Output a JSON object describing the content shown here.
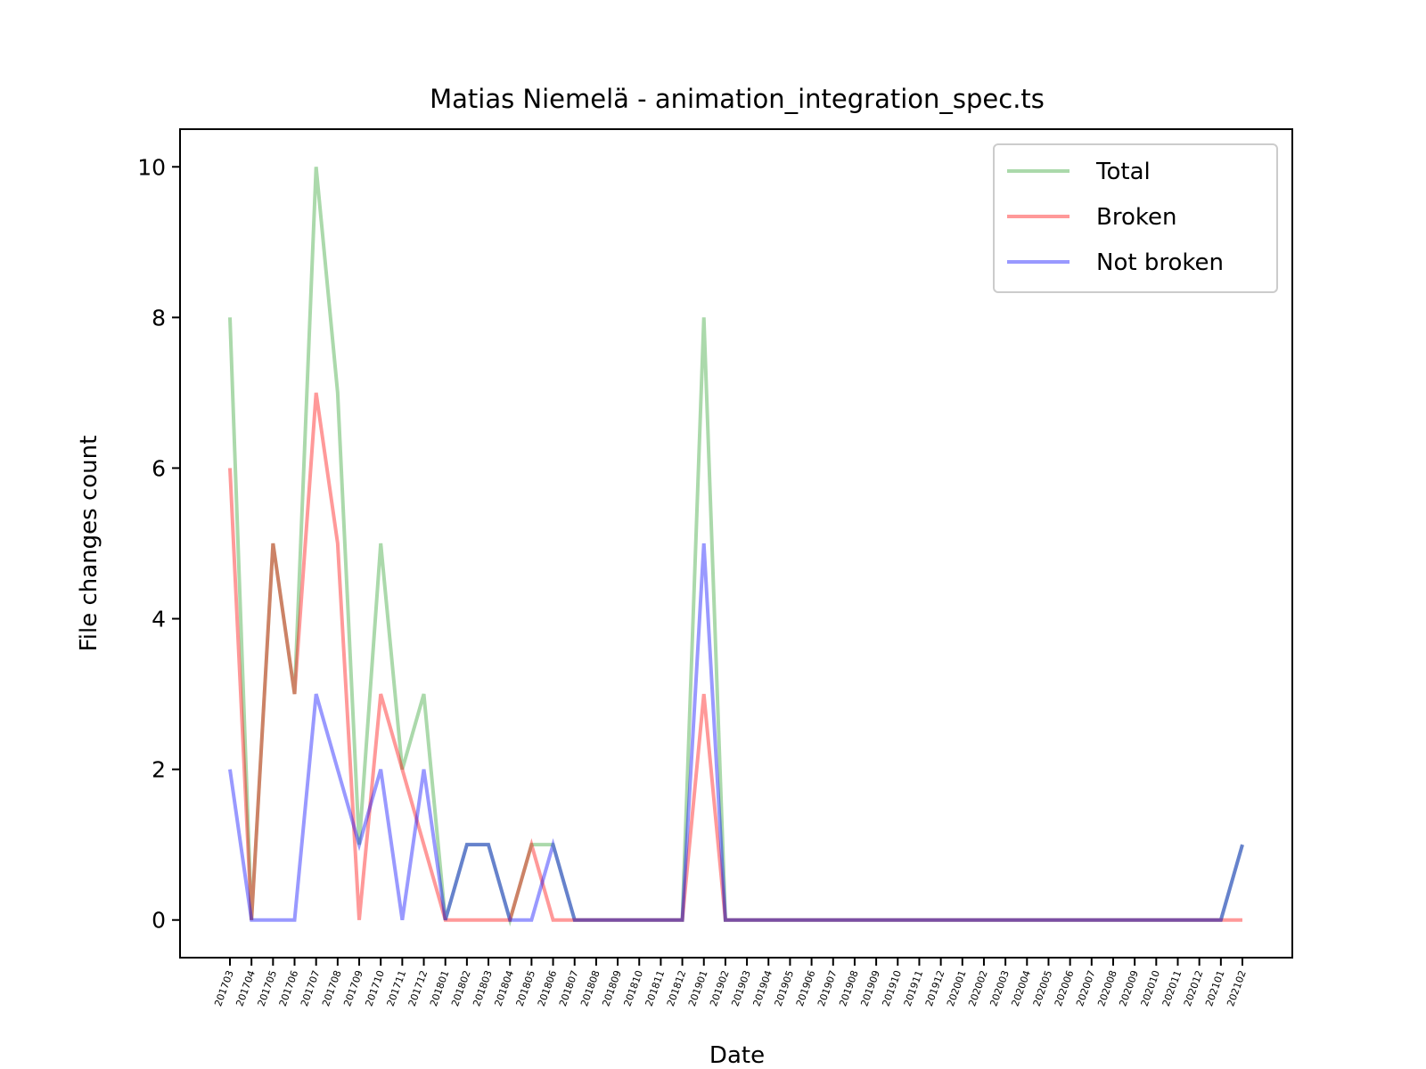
{
  "chart_data": {
    "type": "line",
    "title": "Matias Niemelä - animation_integration_spec.ts",
    "xlabel": "Date",
    "ylabel": "File changes count",
    "ylim": [
      -0.5,
      10.5
    ],
    "yticks": [
      0,
      2,
      4,
      6,
      8,
      10
    ],
    "grid": false,
    "legend_position": "upper right",
    "categories": [
      "201703",
      "201704",
      "201705",
      "201706",
      "201707",
      "201708",
      "201709",
      "201710",
      "201711",
      "201712",
      "201801",
      "201802",
      "201803",
      "201804",
      "201805",
      "201806",
      "201807",
      "201808",
      "201809",
      "201810",
      "201811",
      "201812",
      "201901",
      "201902",
      "201903",
      "201904",
      "201905",
      "201906",
      "201907",
      "201908",
      "201909",
      "201910",
      "201911",
      "201912",
      "202001",
      "202002",
      "202003",
      "202004",
      "202005",
      "202006",
      "202007",
      "202008",
      "202009",
      "202010",
      "202011",
      "202012",
      "202101",
      "202102"
    ],
    "series": [
      {
        "name": "Total",
        "color": "#2ca02c",
        "values": [
          8,
          0,
          5,
          3,
          10,
          7,
          1,
          5,
          2,
          3,
          0,
          1,
          1,
          0,
          1,
          1,
          0,
          0,
          0,
          0,
          0,
          0,
          8,
          0,
          0,
          0,
          0,
          0,
          0,
          0,
          0,
          0,
          0,
          0,
          0,
          0,
          0,
          0,
          0,
          0,
          0,
          0,
          0,
          0,
          0,
          0,
          0,
          1
        ]
      },
      {
        "name": "Broken",
        "color": "#ff0000",
        "values": [
          6,
          0,
          5,
          3,
          7,
          5,
          0,
          3,
          2,
          1,
          0,
          0,
          0,
          0,
          1,
          0,
          0,
          0,
          0,
          0,
          0,
          0,
          3,
          0,
          0,
          0,
          0,
          0,
          0,
          0,
          0,
          0,
          0,
          0,
          0,
          0,
          0,
          0,
          0,
          0,
          0,
          0,
          0,
          0,
          0,
          0,
          0,
          0
        ]
      },
      {
        "name": "Not broken",
        "color": "#0000ff",
        "values": [
          2,
          0,
          0,
          0,
          3,
          2,
          1,
          2,
          0,
          2,
          0,
          1,
          1,
          0,
          0,
          1,
          0,
          0,
          0,
          0,
          0,
          0,
          5,
          0,
          0,
          0,
          0,
          0,
          0,
          0,
          0,
          0,
          0,
          0,
          0,
          0,
          0,
          0,
          0,
          0,
          0,
          0,
          0,
          0,
          0,
          0,
          0,
          1
        ]
      }
    ]
  }
}
